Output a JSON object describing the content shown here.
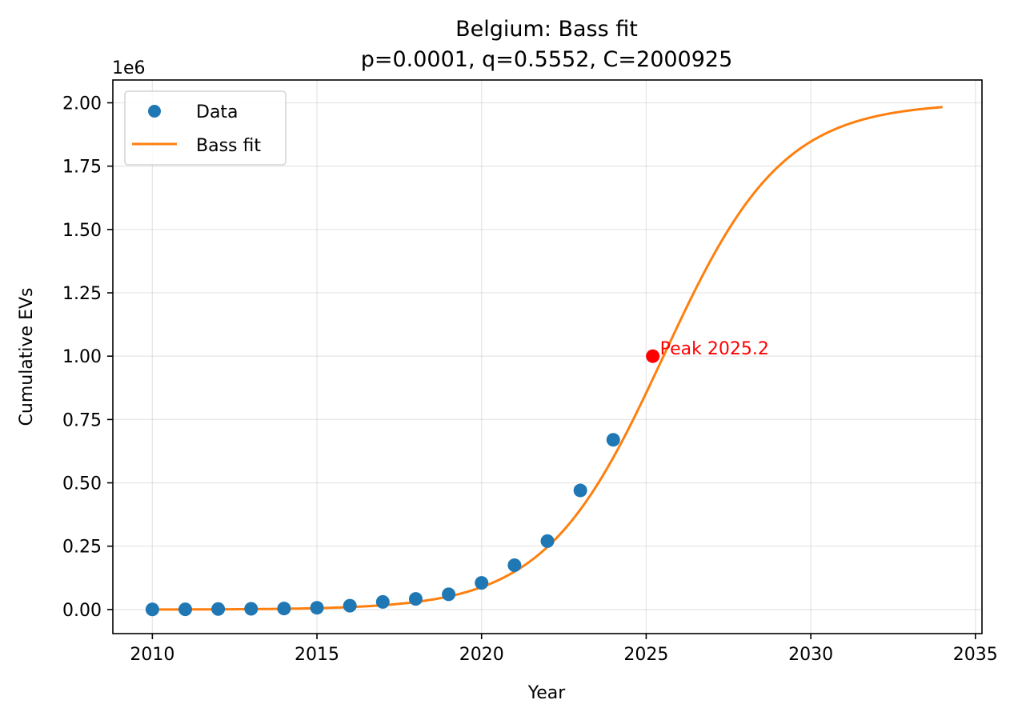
{
  "chart_data": {
    "type": "scatter",
    "title": "Belgium: Bass fit",
    "subtitle": "p=0.0001, q=0.5552, C=2000925",
    "xlabel": "Year",
    "ylabel": "Cumulative EVs",
    "y_offset_label": "1e6",
    "xlim": [
      2008.8,
      2035.2
    ],
    "ylim": [
      -0.095,
      2.09
    ],
    "y_multiplier": 1000000,
    "xticks": [
      2010,
      2015,
      2020,
      2025,
      2030,
      2035
    ],
    "xtick_labels": [
      "2010",
      "2015",
      "2020",
      "2025",
      "2030",
      "2035"
    ],
    "yticks": [
      0,
      0.25,
      0.5,
      0.75,
      1.0,
      1.25,
      1.5,
      1.75,
      2.0
    ],
    "ytick_labels": [
      "0.00",
      "0.25",
      "0.50",
      "0.75",
      "1.00",
      "1.25",
      "1.50",
      "1.75",
      "2.00"
    ],
    "grid": true,
    "legend_position": "top-left",
    "series": [
      {
        "name": "Data",
        "kind": "scatter",
        "color": "#1f77b4",
        "x": [
          2010,
          2011,
          2012,
          2013,
          2014,
          2015,
          2016,
          2017,
          2018,
          2019,
          2020,
          2021,
          2022,
          2023,
          2024
        ],
        "y": [
          0.0005,
          0.001,
          0.002,
          0.003,
          0.004,
          0.007,
          0.015,
          0.03,
          0.042,
          0.06,
          0.105,
          0.175,
          0.27,
          0.47,
          0.67
        ]
      },
      {
        "name": "Bass fit",
        "kind": "line",
        "color": "#ff7f0e",
        "p": 0.0001,
        "q": 0.5552,
        "C": 2000925,
        "t0": 2010,
        "x_range": [
          2010,
          2034
        ]
      }
    ],
    "annotations": [
      {
        "text": "Peak 2025.2",
        "x": 2025.2,
        "y": 1.0,
        "color": "#ff0000"
      }
    ]
  }
}
